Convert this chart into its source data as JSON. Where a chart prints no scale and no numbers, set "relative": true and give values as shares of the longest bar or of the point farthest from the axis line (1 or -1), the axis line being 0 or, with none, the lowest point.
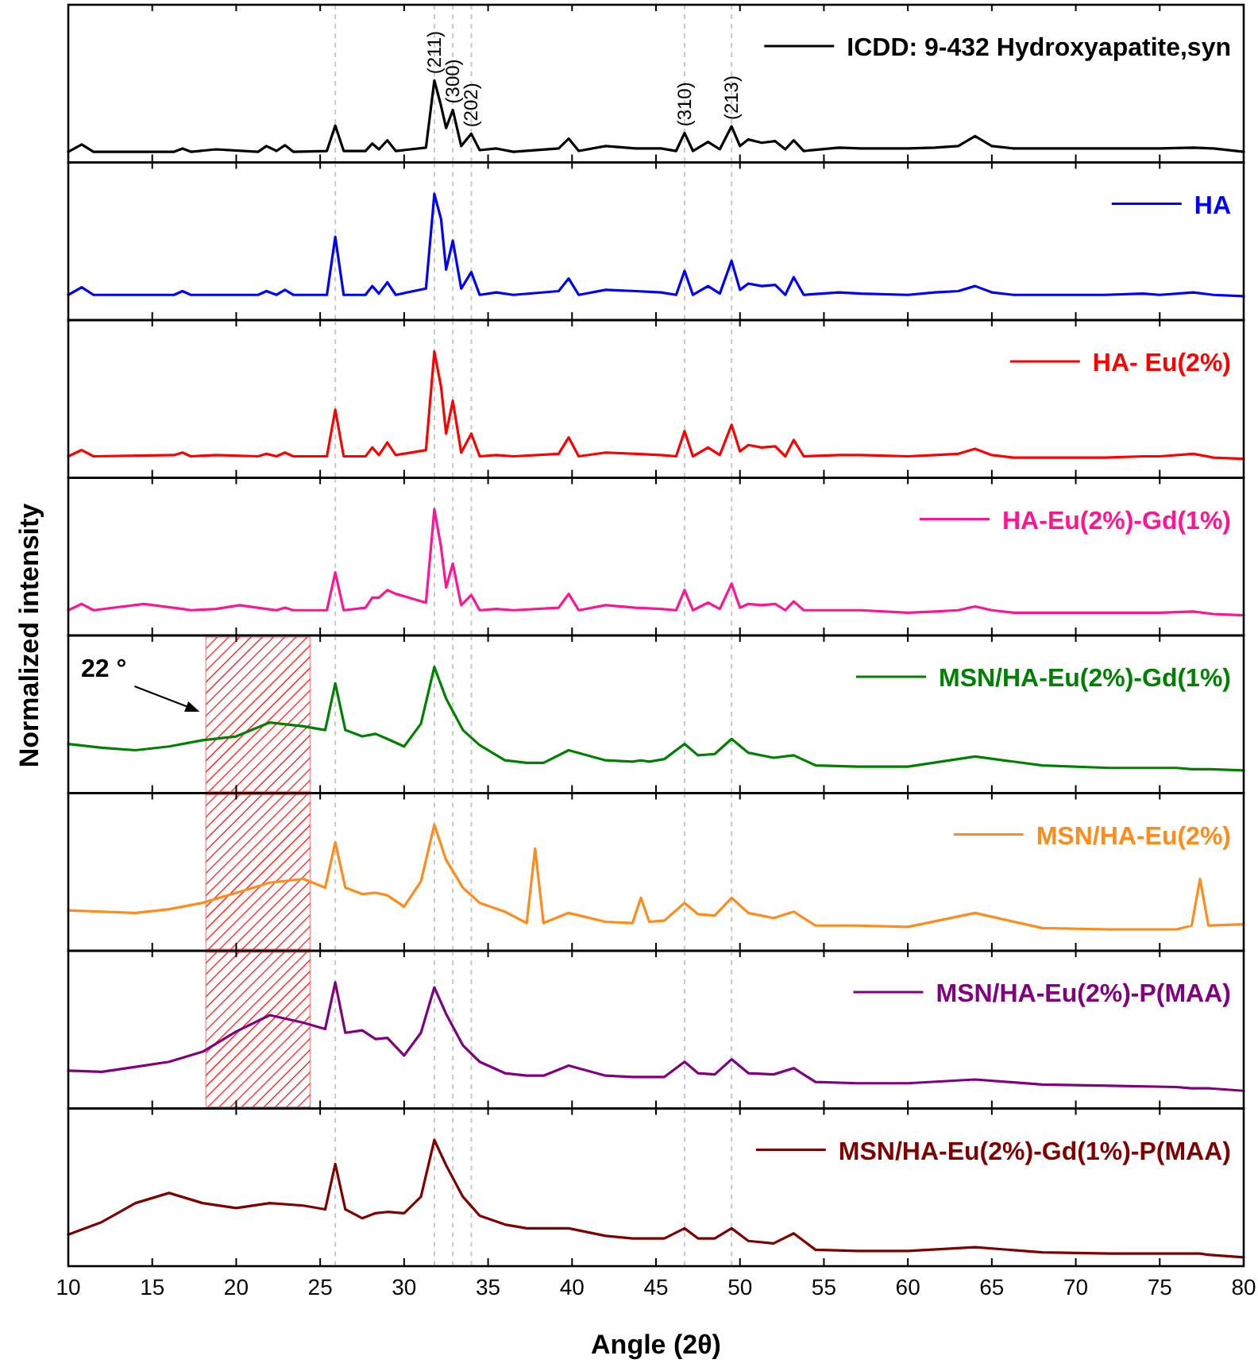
{
  "chart_data": [
    {
      "type": "line",
      "relative": true,
      "tick_labels": false,
      "legend": "top right",
      "xlim": [
        10,
        80
      ],
      "xticks": [
        10,
        15,
        20,
        25,
        30,
        35,
        40,
        45,
        50,
        55,
        60,
        65,
        70,
        75,
        80
      ],
      "x": [
        10,
        10.8,
        11.5,
        16.3,
        16.8,
        17.3,
        18.8,
        21.3,
        21.8,
        22.4,
        22.9,
        23.4,
        25.4,
        25.9,
        26.4,
        27.7,
        28.1,
        28.5,
        29.0,
        29.5,
        31.3,
        31.8,
        32.2,
        32.5,
        32.9,
        33.4,
        34.0,
        34.5,
        35.5,
        36.5,
        39.2,
        39.8,
        40.4,
        42.0,
        43.8,
        45.3,
        46.2,
        46.7,
        47.2,
        48.1,
        48.8,
        49.5,
        50.0,
        50.5,
        51.3,
        52.1,
        52.7,
        53.2,
        53.8,
        55.9,
        57.2,
        60.0,
        61.6,
        63.0,
        64.0,
        65.0,
        66.3,
        71.7,
        74.0,
        75.0,
        77.0,
        78.2,
        80
      ],
      "series": [
        {
          "name": "ICDD: 9-432 Hydroxyapatite,syn",
          "color": "#000000",
          "values": [
            0.13,
            0.22,
            0.13,
            0.13,
            0.17,
            0.13,
            0.16,
            0.13,
            0.2,
            0.14,
            0.21,
            0.13,
            0.14,
            0.45,
            0.14,
            0.14,
            0.23,
            0.16,
            0.27,
            0.14,
            0.18,
            1.0,
            0.69,
            0.42,
            0.64,
            0.2,
            0.35,
            0.15,
            0.17,
            0.13,
            0.17,
            0.29,
            0.14,
            0.2,
            0.17,
            0.17,
            0.14,
            0.36,
            0.14,
            0.25,
            0.16,
            0.44,
            0.2,
            0.28,
            0.24,
            0.26,
            0.16,
            0.27,
            0.14,
            0.18,
            0.17,
            0.17,
            0.18,
            0.2,
            0.32,
            0.2,
            0.17,
            0.17,
            0.17,
            0.17,
            0.18,
            0.17,
            0.13
          ]
        }
      ],
      "ref_lines": [
        {
          "axis": "x",
          "value": 25.9,
          "color": "#c8c8c8",
          "line_style": "dashed"
        },
        {
          "axis": "x",
          "value": 31.8,
          "color": "#c8c8c8",
          "line_style": "dashed"
        },
        {
          "axis": "x",
          "value": 32.9,
          "color": "#c8c8c8",
          "line_style": "dashed"
        },
        {
          "axis": "x",
          "value": 34.0,
          "color": "#c8c8c8",
          "line_style": "dashed"
        },
        {
          "axis": "x",
          "value": 46.7,
          "color": "#c8c8c8",
          "line_style": "dashed"
        },
        {
          "axis": "x",
          "value": 49.5,
          "color": "#c8c8c8",
          "line_style": "dashed"
        }
      ],
      "annotations": [
        {
          "text": "(211)",
          "x": 31.8,
          "y": 1.0
        },
        {
          "text": "(300)",
          "x": 32.9,
          "y": 0.64
        },
        {
          "text": "(202)",
          "x": 34.0,
          "y": 0.35
        },
        {
          "text": "(310)",
          "x": 46.7,
          "y": 0.36
        },
        {
          "text": "(213)",
          "x": 49.5,
          "y": 0.44
        }
      ]
    },
    {
      "type": "line",
      "relative": true,
      "tick_labels": false,
      "legend": "top right",
      "xlim": [
        10,
        80
      ],
      "xticks": [
        10,
        15,
        20,
        25,
        30,
        35,
        40,
        45,
        50,
        55,
        60,
        65,
        70,
        75,
        80
      ],
      "x": [
        10,
        10.8,
        11.5,
        16.3,
        16.8,
        17.3,
        18.8,
        21.3,
        21.8,
        22.4,
        22.9,
        23.4,
        25.4,
        25.9,
        26.4,
        27.7,
        28.1,
        28.5,
        29.0,
        29.5,
        31.3,
        31.8,
        32.2,
        32.5,
        32.9,
        33.4,
        34.0,
        34.5,
        35.5,
        36.5,
        39.2,
        39.8,
        40.4,
        42.0,
        43.8,
        45.3,
        46.2,
        46.7,
        47.2,
        48.1,
        48.8,
        49.5,
        50.0,
        50.5,
        51.3,
        52.1,
        52.7,
        53.2,
        53.8,
        55.9,
        57.2,
        60.0,
        61.6,
        63.0,
        64.0,
        65.0,
        66.3,
        71.7,
        74.0,
        75.0,
        77.0,
        78.2,
        80
      ],
      "series": [
        {
          "name": "HA",
          "color": "#0000ff",
          "values": [
            0.2,
            0.26,
            0.2,
            0.2,
            0.23,
            0.2,
            0.2,
            0.2,
            0.23,
            0.2,
            0.24,
            0.2,
            0.2,
            0.66,
            0.2,
            0.2,
            0.27,
            0.21,
            0.3,
            0.2,
            0.25,
            1.0,
            0.8,
            0.4,
            0.63,
            0.25,
            0.38,
            0.2,
            0.22,
            0.2,
            0.23,
            0.33,
            0.2,
            0.24,
            0.23,
            0.22,
            0.2,
            0.39,
            0.2,
            0.27,
            0.21,
            0.47,
            0.24,
            0.29,
            0.27,
            0.28,
            0.2,
            0.34,
            0.2,
            0.22,
            0.21,
            0.2,
            0.22,
            0.23,
            0.27,
            0.22,
            0.2,
            0.2,
            0.21,
            0.2,
            0.22,
            0.2,
            0.19
          ]
        }
      ],
      "ref_lines": [
        {
          "axis": "x",
          "value": 25.9,
          "color": "#c8c8c8",
          "line_style": "dashed"
        },
        {
          "axis": "x",
          "value": 31.8,
          "color": "#c8c8c8",
          "line_style": "dashed"
        },
        {
          "axis": "x",
          "value": 32.9,
          "color": "#c8c8c8",
          "line_style": "dashed"
        },
        {
          "axis": "x",
          "value": 34.0,
          "color": "#c8c8c8",
          "line_style": "dashed"
        },
        {
          "axis": "x",
          "value": 46.7,
          "color": "#c8c8c8",
          "line_style": "dashed"
        },
        {
          "axis": "x",
          "value": 49.5,
          "color": "#c8c8c8",
          "line_style": "dashed"
        }
      ]
    },
    {
      "type": "line",
      "relative": true,
      "tick_labels": false,
      "legend": "top right",
      "xlim": [
        10,
        80
      ],
      "xticks": [
        10,
        15,
        20,
        25,
        30,
        35,
        40,
        45,
        50,
        55,
        60,
        65,
        70,
        75,
        80
      ],
      "x": [
        10,
        10.8,
        11.5,
        16.3,
        16.8,
        17.3,
        18.8,
        21.3,
        21.8,
        22.4,
        22.9,
        23.4,
        25.4,
        25.9,
        26.4,
        27.7,
        28.1,
        28.5,
        29.0,
        29.5,
        31.3,
        31.8,
        32.2,
        32.5,
        32.9,
        33.4,
        34.0,
        34.5,
        35.5,
        36.5,
        39.2,
        39.8,
        40.4,
        42.0,
        43.8,
        45.3,
        46.2,
        46.7,
        47.2,
        48.1,
        48.8,
        49.5,
        50.0,
        50.5,
        51.3,
        52.1,
        52.7,
        53.2,
        53.8,
        55.9,
        57.2,
        60.0,
        61.6,
        63.0,
        64.0,
        65.0,
        66.3,
        71.7,
        74.0,
        75.0,
        77.0,
        78.2,
        80
      ],
      "series": [
        {
          "name": "HA- Eu(2%)",
          "color": "#ff0000",
          "values": [
            0.17,
            0.22,
            0.17,
            0.18,
            0.2,
            0.17,
            0.18,
            0.17,
            0.19,
            0.17,
            0.2,
            0.17,
            0.17,
            0.54,
            0.17,
            0.17,
            0.24,
            0.18,
            0.28,
            0.18,
            0.22,
            1.0,
            0.72,
            0.35,
            0.61,
            0.2,
            0.35,
            0.17,
            0.18,
            0.17,
            0.19,
            0.32,
            0.17,
            0.2,
            0.19,
            0.18,
            0.17,
            0.37,
            0.17,
            0.24,
            0.18,
            0.42,
            0.21,
            0.26,
            0.24,
            0.25,
            0.17,
            0.3,
            0.17,
            0.18,
            0.18,
            0.17,
            0.18,
            0.19,
            0.23,
            0.18,
            0.16,
            0.16,
            0.17,
            0.17,
            0.19,
            0.16,
            0.15
          ]
        }
      ],
      "ref_lines": [
        {
          "axis": "x",
          "value": 25.9,
          "color": "#c8c8c8",
          "line_style": "dashed"
        },
        {
          "axis": "x",
          "value": 31.8,
          "color": "#c8c8c8",
          "line_style": "dashed"
        },
        {
          "axis": "x",
          "value": 32.9,
          "color": "#c8c8c8",
          "line_style": "dashed"
        },
        {
          "axis": "x",
          "value": 34.0,
          "color": "#c8c8c8",
          "line_style": "dashed"
        },
        {
          "axis": "x",
          "value": 46.7,
          "color": "#c8c8c8",
          "line_style": "dashed"
        },
        {
          "axis": "x",
          "value": 49.5,
          "color": "#c8c8c8",
          "line_style": "dashed"
        }
      ]
    },
    {
      "type": "line",
      "relative": true,
      "tick_labels": false,
      "legend": "top right",
      "xlim": [
        10,
        80
      ],
      "xticks": [
        10,
        15,
        20,
        25,
        30,
        35,
        40,
        45,
        50,
        55,
        60,
        65,
        70,
        75,
        80
      ],
      "x": [
        10,
        10.8,
        11.5,
        14.5,
        16.8,
        17.3,
        18.8,
        20.2,
        21.8,
        22.4,
        22.9,
        23.4,
        25.4,
        25.9,
        26.4,
        27.7,
        28.1,
        28.5,
        29.0,
        29.5,
        31.3,
        31.8,
        32.2,
        32.5,
        32.9,
        33.4,
        34.0,
        34.5,
        35.5,
        36.5,
        39.2,
        39.8,
        40.4,
        42.0,
        43.8,
        45.3,
        46.2,
        46.7,
        47.2,
        48.1,
        48.8,
        49.5,
        50.0,
        50.5,
        51.3,
        52.1,
        52.7,
        53.2,
        53.8,
        55.9,
        57.2,
        60.0,
        61.6,
        63.0,
        64.0,
        65.0,
        66.3,
        71.7,
        74.0,
        75.0,
        77.0,
        78.2,
        80
      ],
      "ylabel": "Normalized intensity",
      "series": [
        {
          "name": "HA-Eu(2%)-Gd(1%)",
          "color": "#ff1493",
          "values": [
            0.2,
            0.25,
            0.2,
            0.25,
            0.21,
            0.2,
            0.21,
            0.24,
            0.21,
            0.2,
            0.22,
            0.2,
            0.2,
            0.5,
            0.2,
            0.22,
            0.3,
            0.3,
            0.36,
            0.33,
            0.26,
            1.0,
            0.7,
            0.38,
            0.57,
            0.24,
            0.32,
            0.2,
            0.21,
            0.2,
            0.22,
            0.33,
            0.2,
            0.24,
            0.22,
            0.21,
            0.2,
            0.36,
            0.2,
            0.26,
            0.21,
            0.41,
            0.22,
            0.25,
            0.24,
            0.25,
            0.2,
            0.27,
            0.2,
            0.2,
            0.2,
            0.18,
            0.19,
            0.2,
            0.23,
            0.2,
            0.18,
            0.18,
            0.18,
            0.18,
            0.19,
            0.17,
            0.16
          ]
        }
      ],
      "ref_lines": [
        {
          "axis": "x",
          "value": 25.9,
          "color": "#c8c8c8",
          "line_style": "dashed"
        },
        {
          "axis": "x",
          "value": 31.8,
          "color": "#c8c8c8",
          "line_style": "dashed"
        },
        {
          "axis": "x",
          "value": 32.9,
          "color": "#c8c8c8",
          "line_style": "dashed"
        },
        {
          "axis": "x",
          "value": 34.0,
          "color": "#c8c8c8",
          "line_style": "dashed"
        },
        {
          "axis": "x",
          "value": 46.7,
          "color": "#c8c8c8",
          "line_style": "dashed"
        },
        {
          "axis": "x",
          "value": 49.5,
          "color": "#c8c8c8",
          "line_style": "dashed"
        }
      ]
    },
    {
      "type": "line",
      "relative": true,
      "tick_labels": false,
      "legend": "top right",
      "xlim": [
        10,
        80
      ],
      "xticks": [
        10,
        15,
        20,
        25,
        30,
        35,
        40,
        45,
        50,
        55,
        60,
        65,
        70,
        75,
        80
      ],
      "x": [
        10,
        12,
        14,
        16,
        18,
        20,
        22,
        24,
        25.3,
        25.9,
        26.5,
        27.5,
        28.3,
        29,
        30,
        31,
        31.8,
        32.5,
        33.5,
        34.5,
        36,
        37.3,
        37.8,
        38.3,
        39.8,
        42,
        43.6,
        44.1,
        44.6,
        45.5,
        46.7,
        47.5,
        48.5,
        49.5,
        50.5,
        52,
        53.2,
        54.5,
        57,
        60,
        64,
        68,
        72,
        76,
        76.9,
        77.4,
        77.9,
        80
      ],
      "series": [
        {
          "name": "MSN/HA-Eu(2%)-Gd(1%)",
          "color": "#008000",
          "values": [
            0.39,
            0.36,
            0.34,
            0.37,
            0.42,
            0.45,
            0.56,
            0.53,
            0.5,
            0.87,
            0.5,
            0.45,
            0.47,
            0.43,
            0.37,
            0.55,
            1.0,
            0.75,
            0.5,
            0.38,
            0.26,
            0.24,
            0.24,
            0.24,
            0.34,
            0.26,
            0.25,
            0.26,
            0.25,
            0.27,
            0.39,
            0.3,
            0.31,
            0.43,
            0.32,
            0.28,
            0.3,
            0.22,
            0.21,
            0.21,
            0.29,
            0.22,
            0.2,
            0.2,
            0.19,
            0.19,
            0.19,
            0.18
          ]
        }
      ],
      "ref_lines": [
        {
          "axis": "x",
          "value": 25.9,
          "color": "#c8c8c8",
          "line_style": "dashed"
        },
        {
          "axis": "x",
          "value": 31.8,
          "color": "#c8c8c8",
          "line_style": "dashed"
        },
        {
          "axis": "x",
          "value": 32.9,
          "color": "#c8c8c8",
          "line_style": "dashed"
        },
        {
          "axis": "x",
          "value": 34.0,
          "color": "#c8c8c8",
          "line_style": "dashed"
        },
        {
          "axis": "x",
          "value": 46.7,
          "color": "#c8c8c8",
          "line_style": "dashed"
        },
        {
          "axis": "x",
          "value": 49.5,
          "color": "#c8c8c8",
          "line_style": "dashed"
        }
      ],
      "bands": [
        {
          "axis": "x",
          "from": 18.2,
          "to": 24.4,
          "color": "#ff0000"
        }
      ],
      "annotations": [
        "22 °"
      ]
    },
    {
      "type": "line",
      "relative": true,
      "tick_labels": false,
      "legend": "top right",
      "xlim": [
        10,
        80
      ],
      "xticks": [
        10,
        15,
        20,
        25,
        30,
        35,
        40,
        45,
        50,
        55,
        60,
        65,
        70,
        75,
        80
      ],
      "x": [
        10,
        12,
        14,
        16,
        18,
        20,
        22,
        24,
        25.3,
        25.9,
        26.5,
        27.5,
        28.3,
        29,
        30,
        31,
        31.8,
        32.5,
        33.5,
        34.5,
        36,
        37.3,
        37.8,
        38.3,
        39.8,
        42,
        43.6,
        44.1,
        44.6,
        45.5,
        46.7,
        47.5,
        48.5,
        49.5,
        50.5,
        52,
        53.2,
        54.5,
        57,
        60,
        64,
        68,
        72,
        76,
        76.9,
        77.4,
        77.9,
        80
      ],
      "series": [
        {
          "name": "MSN/HA-Eu(2%)",
          "color": "#ff8c1a",
          "values": [
            0.32,
            0.31,
            0.3,
            0.33,
            0.38,
            0.46,
            0.54,
            0.57,
            0.5,
            0.86,
            0.5,
            0.45,
            0.46,
            0.44,
            0.35,
            0.55,
            1.0,
            0.72,
            0.5,
            0.38,
            0.31,
            0.22,
            0.81,
            0.22,
            0.3,
            0.23,
            0.22,
            0.42,
            0.23,
            0.24,
            0.38,
            0.29,
            0.28,
            0.42,
            0.3,
            0.26,
            0.31,
            0.2,
            0.2,
            0.19,
            0.3,
            0.18,
            0.17,
            0.17,
            0.2,
            0.57,
            0.2,
            0.21
          ]
        }
      ],
      "ref_lines": [
        {
          "axis": "x",
          "value": 25.9,
          "color": "#c8c8c8",
          "line_style": "dashed"
        },
        {
          "axis": "x",
          "value": 31.8,
          "color": "#c8c8c8",
          "line_style": "dashed"
        },
        {
          "axis": "x",
          "value": 32.9,
          "color": "#c8c8c8",
          "line_style": "dashed"
        },
        {
          "axis": "x",
          "value": 34.0,
          "color": "#c8c8c8",
          "line_style": "dashed"
        },
        {
          "axis": "x",
          "value": 46.7,
          "color": "#c8c8c8",
          "line_style": "dashed"
        },
        {
          "axis": "x",
          "value": 49.5,
          "color": "#c8c8c8",
          "line_style": "dashed"
        }
      ],
      "bands": [
        {
          "axis": "x",
          "from": 18.2,
          "to": 24.4,
          "color": "#ff0000"
        }
      ]
    },
    {
      "type": "line",
      "relative": true,
      "tick_labels": false,
      "legend": "top right",
      "xlim": [
        10,
        80
      ],
      "xticks": [
        10,
        15,
        20,
        25,
        30,
        35,
        40,
        45,
        50,
        55,
        60,
        65,
        70,
        75,
        80
      ],
      "x": [
        10,
        12,
        14,
        16,
        18,
        20,
        22,
        24,
        25.3,
        25.9,
        26.5,
        27.5,
        28.3,
        29,
        30,
        31,
        31.8,
        32.5,
        33.5,
        34.5,
        36,
        37.3,
        37.8,
        38.3,
        39.8,
        42,
        43.6,
        44.1,
        44.6,
        45.5,
        46.7,
        47.5,
        48.5,
        49.5,
        50.5,
        52,
        53.2,
        54.5,
        57,
        60,
        64,
        68,
        72,
        76,
        76.9,
        77.4,
        77.9,
        80
      ],
      "series": [
        {
          "name": "MSN/HA-Eu(2%)-P(MAA)",
          "color": "#800080",
          "values": [
            0.3,
            0.29,
            0.33,
            0.37,
            0.45,
            0.61,
            0.74,
            0.68,
            0.63,
            1.0,
            0.6,
            0.62,
            0.55,
            0.56,
            0.42,
            0.6,
            0.96,
            0.75,
            0.5,
            0.37,
            0.28,
            0.26,
            0.26,
            0.26,
            0.34,
            0.26,
            0.25,
            0.25,
            0.25,
            0.25,
            0.37,
            0.28,
            0.27,
            0.39,
            0.28,
            0.27,
            0.32,
            0.21,
            0.2,
            0.2,
            0.23,
            0.19,
            0.18,
            0.17,
            0.16,
            0.16,
            0.16,
            0.14
          ]
        }
      ],
      "ref_lines": [
        {
          "axis": "x",
          "value": 25.9,
          "color": "#c8c8c8",
          "line_style": "dashed"
        },
        {
          "axis": "x",
          "value": 31.8,
          "color": "#c8c8c8",
          "line_style": "dashed"
        },
        {
          "axis": "x",
          "value": 32.9,
          "color": "#c8c8c8",
          "line_style": "dashed"
        },
        {
          "axis": "x",
          "value": 34.0,
          "color": "#c8c8c8",
          "line_style": "dashed"
        },
        {
          "axis": "x",
          "value": 46.7,
          "color": "#c8c8c8",
          "line_style": "dashed"
        },
        {
          "axis": "x",
          "value": 49.5,
          "color": "#c8c8c8",
          "line_style": "dashed"
        }
      ],
      "bands": [
        {
          "axis": "x",
          "from": 18.2,
          "to": 24.4,
          "color": "#ff0000"
        }
      ]
    },
    {
      "type": "line",
      "relative": true,
      "xlabel": "Angle (2θ)",
      "tick_labels": "x",
      "legend": "top right",
      "xlim": [
        10,
        80
      ],
      "xticks": [
        10,
        15,
        20,
        25,
        30,
        35,
        40,
        45,
        50,
        55,
        60,
        65,
        70,
        75,
        80
      ],
      "x": [
        10,
        12,
        14,
        16,
        18,
        20,
        22,
        24,
        25.3,
        25.9,
        26.5,
        27.5,
        28.3,
        29,
        30,
        31,
        31.8,
        32.5,
        33.5,
        34.5,
        36,
        37.3,
        37.8,
        38.3,
        39.8,
        42,
        43.6,
        44.1,
        44.6,
        45.5,
        46.7,
        47.5,
        48.5,
        49.5,
        50.5,
        52,
        53.2,
        54.5,
        57,
        60,
        64,
        68,
        72,
        76,
        76.9,
        77.4,
        77.9,
        80
      ],
      "series": [
        {
          "name": "MSN/HA-Eu(2%)-Gd(1%)-P(MAA)",
          "color": "#800000",
          "values": [
            0.25,
            0.35,
            0.5,
            0.58,
            0.5,
            0.46,
            0.5,
            0.48,
            0.45,
            0.81,
            0.45,
            0.38,
            0.42,
            0.43,
            0.42,
            0.55,
            1.0,
            0.8,
            0.55,
            0.4,
            0.33,
            0.3,
            0.3,
            0.3,
            0.3,
            0.24,
            0.22,
            0.22,
            0.22,
            0.22,
            0.3,
            0.22,
            0.22,
            0.3,
            0.2,
            0.18,
            0.26,
            0.13,
            0.12,
            0.12,
            0.15,
            0.11,
            0.1,
            0.1,
            0.1,
            0.1,
            0.09,
            0.07
          ]
        }
      ],
      "ref_lines": [
        {
          "axis": "x",
          "value": 25.9,
          "color": "#c8c8c8",
          "line_style": "dashed"
        },
        {
          "axis": "x",
          "value": 31.8,
          "color": "#c8c8c8",
          "line_style": "dashed"
        },
        {
          "axis": "x",
          "value": 32.9,
          "color": "#c8c8c8",
          "line_style": "dashed"
        },
        {
          "axis": "x",
          "value": 34.0,
          "color": "#c8c8c8",
          "line_style": "dashed"
        },
        {
          "axis": "x",
          "value": 46.7,
          "color": "#c8c8c8",
          "line_style": "dashed"
        },
        {
          "axis": "x",
          "value": 49.5,
          "color": "#c8c8c8",
          "line_style": "dashed"
        }
      ]
    }
  ]
}
